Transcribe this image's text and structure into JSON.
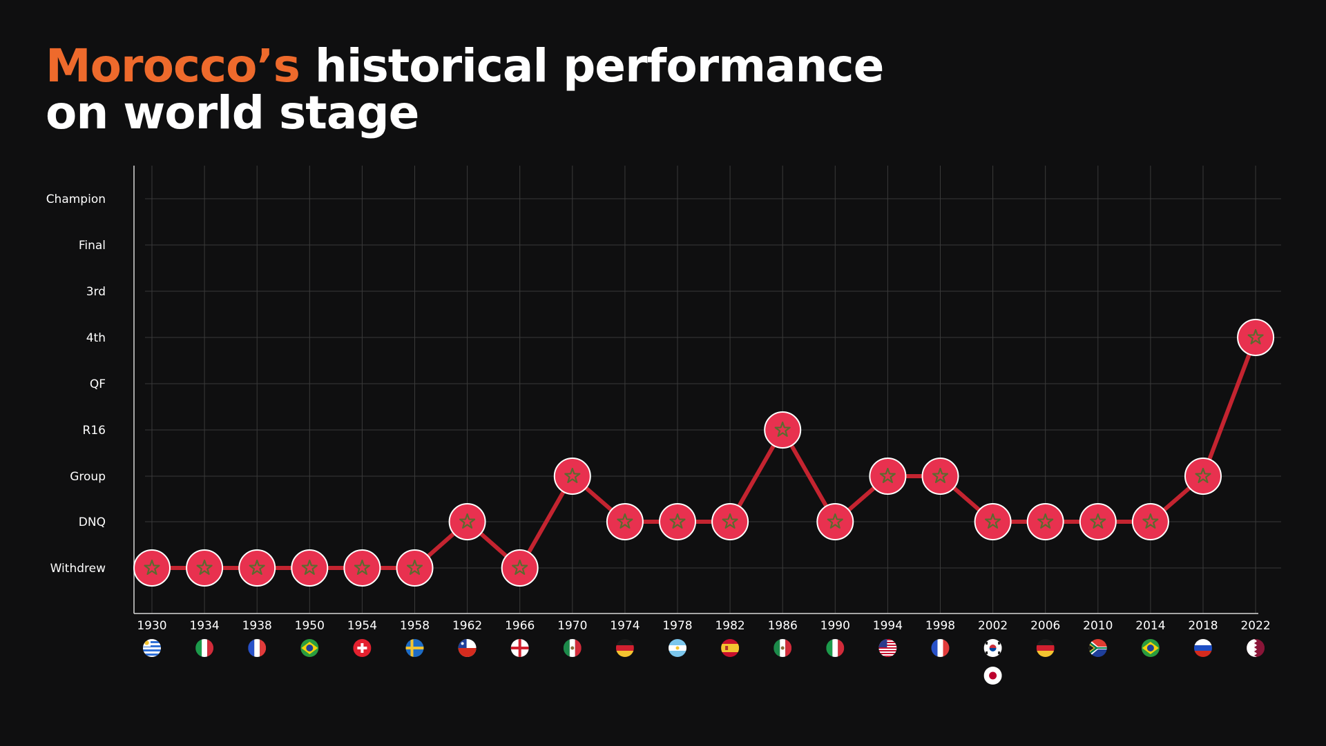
{
  "title": {
    "accent": "Morocco’s",
    "line1_rest": "historical performance",
    "line2": "on world stage"
  },
  "colors": {
    "background": "#0f0f10",
    "accent": "#ee6a2c",
    "line": "#c42430",
    "marker": "#e8314f",
    "star": "#5a6b2f",
    "grid": "#3a3a3a"
  },
  "chart_data": {
    "type": "line",
    "title": "Morocco’s historical performance on world stage",
    "y_categories": [
      "Withdrew",
      "DNQ",
      "Group",
      "R16",
      "QF",
      "4th",
      "3rd",
      "Final",
      "Champion"
    ],
    "x": [
      "1930",
      "1934",
      "1938",
      "1950",
      "1954",
      "1958",
      "1962",
      "1966",
      "1970",
      "1974",
      "1978",
      "1982",
      "1986",
      "1990",
      "1994",
      "1998",
      "2002",
      "2006",
      "2010",
      "2014",
      "2018",
      "2022"
    ],
    "series": [
      {
        "values": [
          "Withdrew",
          "Withdrew",
          "Withdrew",
          "Withdrew",
          "Withdrew",
          "Withdrew",
          "DNQ",
          "Withdrew",
          "Group",
          "DNQ",
          "DNQ",
          "DNQ",
          "R16",
          "DNQ",
          "Group",
          "Group",
          "DNQ",
          "DNQ",
          "DNQ",
          "DNQ",
          "Group",
          "4th"
        ]
      }
    ],
    "host_flags": [
      [
        "uruguay-flag-icon"
      ],
      [
        "italy-flag-icon"
      ],
      [
        "france-flag-icon"
      ],
      [
        "brazil-flag-icon"
      ],
      [
        "switzerland-flag-icon"
      ],
      [
        "sweden-flag-icon"
      ],
      [
        "chile-flag-icon"
      ],
      [
        "england-flag-icon"
      ],
      [
        "mexico-flag-icon"
      ],
      [
        "germany-flag-icon"
      ],
      [
        "argentina-flag-icon"
      ],
      [
        "spain-flag-icon"
      ],
      [
        "mexico-flag-icon"
      ],
      [
        "italy-flag-icon"
      ],
      [
        "usa-flag-icon"
      ],
      [
        "france-flag-icon"
      ],
      [
        "south-korea-flag-icon",
        "japan-flag-icon"
      ],
      [
        "germany-flag-icon"
      ],
      [
        "south-africa-flag-icon"
      ],
      [
        "brazil-flag-icon"
      ],
      [
        "russia-flag-icon"
      ],
      [
        "qatar-flag-icon"
      ]
    ],
    "grid": true,
    "marker": "morocco-flag-icon"
  }
}
